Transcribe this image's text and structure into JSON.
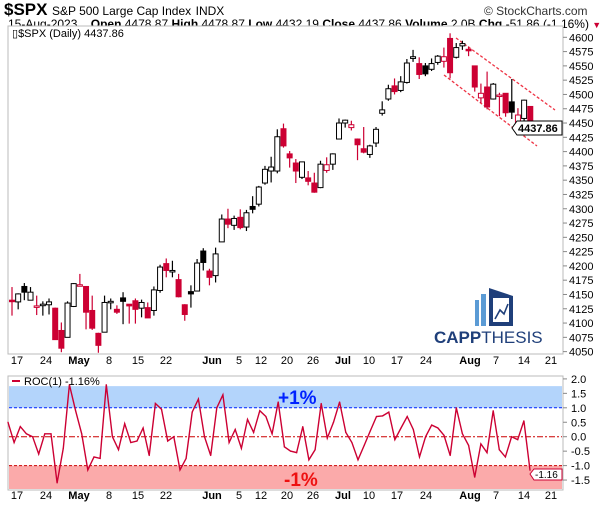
{
  "header": {
    "symbol": "$SPX",
    "name": "S&P 500 Large Cap Index",
    "exchange": "INDX",
    "copyright": "© StockCharts.com",
    "date": "15-Aug-2023",
    "open_label": "Open",
    "open": "4478.87",
    "high_label": "High",
    "high": "4478.87",
    "low_label": "Low",
    "low": "4432.19",
    "close_label": "Close",
    "close": "4437.86",
    "volume_label": "Volume",
    "volume": "2.0B",
    "chg_label": "Chg",
    "chg": "-51.86 (-1.16%)"
  },
  "price_panel": {
    "legend": "$SPX (Daily) 4437.86",
    "last_price_tag": "4437.86",
    "y_ticks": [
      "4600",
      "4575",
      "4550",
      "4525",
      "4500",
      "4475",
      "4450",
      "4425",
      "4400",
      "4375",
      "4350",
      "4325",
      "4300",
      "4275",
      "4250",
      "4225",
      "4200",
      "4175",
      "4150",
      "4125",
      "4100",
      "4075",
      "4050"
    ],
    "x_labels": [
      "17",
      "24",
      "May",
      "8",
      "15",
      "22",
      "Jun",
      "5",
      "12",
      "20",
      "26",
      "Jul",
      "10",
      "17",
      "24",
      "Aug",
      "7",
      "14",
      "21"
    ]
  },
  "roc_panel": {
    "legend": "ROC(1) -1.16%",
    "last_value_tag": "-1.16",
    "upper_band_label": "+1%",
    "lower_band_label": "-1%",
    "y_ticks": [
      "2.0",
      "1.5",
      "1.0",
      "0.5",
      "0.0",
      "-0.5",
      "-1.0",
      "-1.5"
    ],
    "x_labels": [
      "17",
      "24",
      "May",
      "8",
      "15",
      "22",
      "Jun",
      "5",
      "12",
      "20",
      "26",
      "Jul",
      "10",
      "17",
      "24",
      "Aug",
      "7",
      "14",
      "21"
    ]
  },
  "logo": {
    "text_bold": "CAPP",
    "text_light": "THESIS"
  },
  "colors": {
    "up": "#000000",
    "down": "#cc0033",
    "upper_band": "#b3d4fb",
    "lower_band": "#fbaaaa",
    "upper_line": "#0022ff",
    "logo": "#1f3f7a",
    "logo_light": "#5b9bd5"
  },
  "chart_data": [
    {
      "type": "candlestick",
      "title": "$SPX (Daily)",
      "ylim": [
        4040,
        4610
      ],
      "ohlc": [
        [
          4140,
          4163,
          4113,
          4138
        ],
        [
          4137,
          4152,
          4124,
          4151
        ],
        [
          4164,
          4170,
          4140,
          4154
        ],
        [
          4140,
          4163,
          4140,
          4154
        ],
        [
          4130,
          4148,
          4114,
          4130
        ],
        [
          4132,
          4138,
          4113,
          4133
        ],
        [
          4132,
          4143,
          4115,
          4137
        ],
        [
          4126,
          4127,
          4071,
          4071
        ],
        [
          4087,
          4101,
          4049,
          4056
        ],
        [
          4075,
          4138,
          4075,
          4135
        ],
        [
          4129,
          4170,
          4128,
          4169
        ],
        [
          4166,
          4186,
          4164,
          4167
        ],
        [
          4164,
          4164,
          4089,
          4119
        ],
        [
          4122,
          4148,
          4088,
          4091
        ],
        [
          4082,
          4083,
          4048,
          4061
        ],
        [
          4084,
          4148,
          4084,
          4136
        ],
        [
          4136,
          4143,
          4124,
          4138
        ],
        [
          4124,
          4131,
          4116,
          4119
        ],
        [
          4144,
          4154,
          4098,
          4138
        ],
        [
          4133,
          4133,
          4099,
          4130
        ],
        [
          4139,
          4143,
          4099,
          4124
        ],
        [
          4126,
          4141,
          4110,
          4136
        ],
        [
          4127,
          4136,
          4109,
          4109
        ],
        [
          4122,
          4164,
          4113,
          4158
        ],
        [
          4157,
          4202,
          4153,
          4198
        ],
        [
          4204,
          4213,
          4180,
          4192
        ],
        [
          4191,
          4209,
          4180,
          4192
        ],
        [
          4176,
          4186,
          4145,
          4146
        ],
        [
          4132,
          4133,
          4104,
          4115
        ],
        [
          4155,
          4166,
          4127,
          4151
        ],
        [
          4156,
          4212,
          4156,
          4205
        ],
        [
          4226,
          4231,
          4192,
          4206
        ],
        [
          4191,
          4195,
          4166,
          4180
        ],
        [
          4183,
          4232,
          4171,
          4221
        ],
        [
          4242,
          4290,
          4242,
          4282
        ],
        [
          4282,
          4300,
          4266,
          4273
        ],
        [
          4271,
          4288,
          4263,
          4283
        ],
        [
          4285,
          4299,
          4264,
          4267
        ],
        [
          4268,
          4298,
          4261,
          4293
        ],
        [
          4304,
          4322,
          4292,
          4299
        ],
        [
          4308,
          4340,
          4304,
          4338
        ],
        [
          4345,
          4375,
          4342,
          4369
        ],
        [
          4366,
          4391,
          4346,
          4373
        ],
        [
          4366,
          4439,
          4362,
          4426
        ],
        [
          4440,
          4449,
          4407,
          4410
        ],
        [
          4396,
          4401,
          4372,
          4389
        ],
        [
          4380,
          4387,
          4345,
          4366
        ],
        [
          4355,
          4382,
          4352,
          4382
        ],
        [
          4354,
          4366,
          4341,
          4348
        ],
        [
          4345,
          4363,
          4328,
          4329
        ],
        [
          4337,
          4384,
          4336,
          4378
        ],
        [
          4367,
          4390,
          4363,
          4377
        ],
        [
          4378,
          4397,
          4368,
          4396
        ],
        [
          4422,
          4458,
          4422,
          4450
        ],
        [
          4450,
          4456,
          4442,
          4455
        ],
        [
          4442,
          4454,
          4437,
          4447
        ],
        [
          4422,
          4423,
          4385,
          4412
        ],
        [
          4405,
          4443,
          4397,
          4399
        ],
        [
          4395,
          4412,
          4389,
          4410
        ],
        [
          4415,
          4443,
          4408,
          4439
        ],
        [
          4467,
          4488,
          4463,
          4473
        ],
        [
          4492,
          4517,
          4489,
          4510
        ],
        [
          4515,
          4528,
          4500,
          4505
        ],
        [
          4507,
          4532,
          4504,
          4522
        ],
        [
          4521,
          4562,
          4519,
          4555
        ],
        [
          4563,
          4578,
          4557,
          4566
        ],
        [
          4554,
          4565,
          4527,
          4535
        ],
        [
          4550,
          4555,
          4532,
          4536
        ],
        [
          4544,
          4563,
          4541,
          4554
        ],
        [
          4556,
          4569,
          4552,
          4567
        ],
        [
          4558,
          4582,
          4547,
          4566
        ],
        [
          4598,
          4607,
          4528,
          4538
        ],
        [
          4565,
          4590,
          4563,
          4582
        ],
        [
          4585,
          4594,
          4578,
          4589
        ],
        [
          4579,
          4584,
          4567,
          4577
        ],
        [
          4550,
          4550,
          4505,
          4513
        ],
        [
          4494,
          4519,
          4485,
          4502
        ],
        [
          4513,
          4540,
          4474,
          4478
        ],
        [
          4492,
          4520,
          4491,
          4518
        ],
        [
          4498,
          4503,
          4462,
          4499
        ],
        [
          4502,
          4502,
          4461,
          4468
        ],
        [
          4487,
          4527,
          4457,
          4469
        ],
        [
          4450,
          4476,
          4443,
          4464
        ],
        [
          4458,
          4491,
          4453,
          4490
        ],
        [
          4479,
          4479,
          4432,
          4438
        ]
      ],
      "channel": {
        "upper": [
          [
            4590,
            4530
          ],
          [
            0,
            0
          ]
        ],
        "note": ""
      }
    },
    {
      "type": "line",
      "title": "ROC(1)",
      "ylim": [
        -1.75,
        2.1
      ],
      "reference_lines": [
        1.0,
        0.0,
        -1.0
      ],
      "values": [
        0.5,
        -0.2,
        0.35,
        0.1,
        0.0,
        -0.6,
        0.1,
        0.1,
        -1.6,
        -0.4,
        1.8,
        0.9,
        0.1,
        -1.15,
        -0.7,
        -0.75,
        1.8,
        0.0,
        -0.45,
        0.45,
        -0.2,
        -0.15,
        0.3,
        -0.65,
        1.15,
        0.95,
        -0.15,
        0.0,
        -1.15,
        -0.75,
        0.85,
        1.3,
        0.0,
        -0.65,
        1.0,
        1.45,
        -0.2,
        0.25,
        -0.4,
        0.6,
        0.15,
        0.9,
        0.7,
        0.1,
        1.2,
        -0.35,
        -0.5,
        -0.55,
        0.35,
        -0.8,
        -0.45,
        1.15,
        -0.05,
        0.5,
        1.2,
        0.15,
        -0.2,
        -0.8,
        -0.3,
        0.2,
        0.7,
        0.72,
        0.85,
        -0.1,
        0.3,
        0.7,
        0.25,
        -0.7,
        0.0,
        0.4,
        0.3,
        0.05,
        -0.65,
        1.0,
        0.1,
        -0.3,
        -1.4,
        -0.25,
        -0.55,
        0.9,
        -0.45,
        -0.7,
        0.0,
        -0.1,
        0.55,
        -1.16
      ]
    }
  ]
}
